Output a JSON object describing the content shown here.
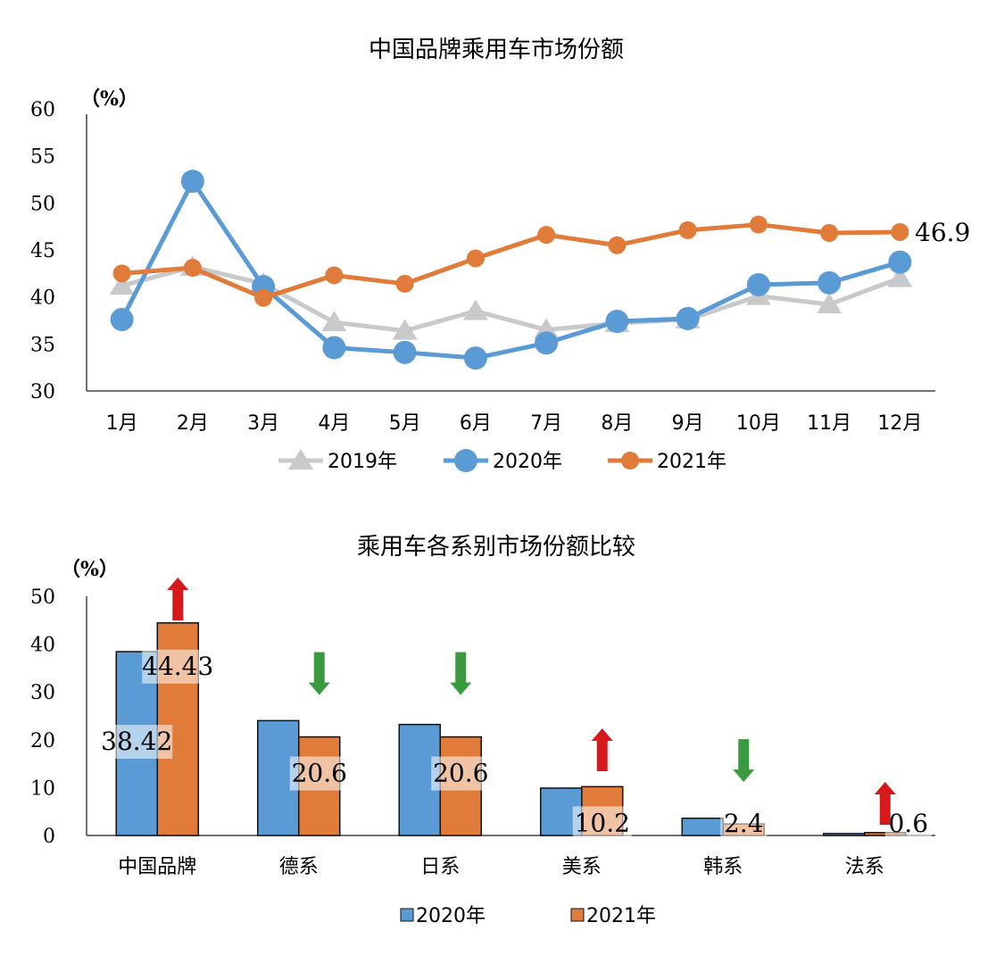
{
  "chart_data": [
    {
      "type": "line",
      "title": "中国品牌乘用车市场份额",
      "unit_label": "（%）",
      "categories": [
        "1月",
        "2月",
        "3月",
        "4月",
        "5月",
        "6月",
        "7月",
        "8月",
        "9月",
        "10月",
        "11月",
        "12月"
      ],
      "ylim": [
        30,
        60
      ],
      "yticks": [
        30,
        35,
        40,
        45,
        50,
        55,
        60
      ],
      "grid": false,
      "legend_position": "bottom",
      "series": [
        {
          "name": "2019年",
          "color": "#c8c9cb",
          "marker": "triangle",
          "values": [
            41.2,
            43.2,
            41.4,
            37.3,
            36.4,
            38.5,
            36.5,
            37.2,
            37.6,
            40.1,
            39.2,
            42.0
          ]
        },
        {
          "name": "2020年",
          "color": "#5b9bd5",
          "marker": "circle",
          "values": [
            37.6,
            52.3,
            41.1,
            34.6,
            34.1,
            33.5,
            35.1,
            37.4,
            37.7,
            41.3,
            41.5,
            43.7
          ]
        },
        {
          "name": "2021年",
          "color": "#e07b39",
          "marker": "circle",
          "values": [
            42.5,
            43.1,
            39.9,
            42.3,
            41.4,
            44.1,
            46.6,
            45.5,
            47.1,
            47.7,
            46.8,
            46.9
          ]
        }
      ],
      "annotation": "46.9"
    },
    {
      "type": "bar",
      "title": "乘用车各系别市场份额比较",
      "unit_label": "（%）",
      "categories": [
        "中国品牌",
        "德系",
        "日系",
        "美系",
        "韩系",
        "法系"
      ],
      "ylim": [
        0,
        50
      ],
      "yticks": [
        0,
        10,
        20,
        30,
        40,
        50
      ],
      "grid": false,
      "legend_position": "bottom",
      "series": [
        {
          "name": "2020年",
          "color": "#5b9bd5",
          "values": [
            38.42,
            24.0,
            23.2,
            9.9,
            3.6,
            0.4
          ]
        },
        {
          "name": "2021年",
          "color": "#e07b39",
          "values": [
            44.43,
            20.6,
            20.6,
            10.2,
            2.4,
            0.6
          ]
        }
      ],
      "data_labels": [
        {
          "category": "中国品牌",
          "series": "2020年",
          "text": "38.42"
        },
        {
          "category": "中国品牌",
          "series": "2021年",
          "text": "44.43"
        },
        {
          "category": "德系",
          "series": "2021年",
          "text": "20.6"
        },
        {
          "category": "日系",
          "series": "2021年",
          "text": "20.6"
        },
        {
          "category": "美系",
          "series": "2021年",
          "text": "10.2"
        },
        {
          "category": "韩系",
          "series": "2021年",
          "text": "2.4"
        },
        {
          "category": "法系",
          "series": "2021年",
          "text": "0.6"
        }
      ],
      "trend_arrows": [
        "up",
        "down",
        "down",
        "up",
        "down",
        "up"
      ],
      "arrow_colors": {
        "up": "#d7191c",
        "down": "#3a9a3f"
      }
    }
  ]
}
